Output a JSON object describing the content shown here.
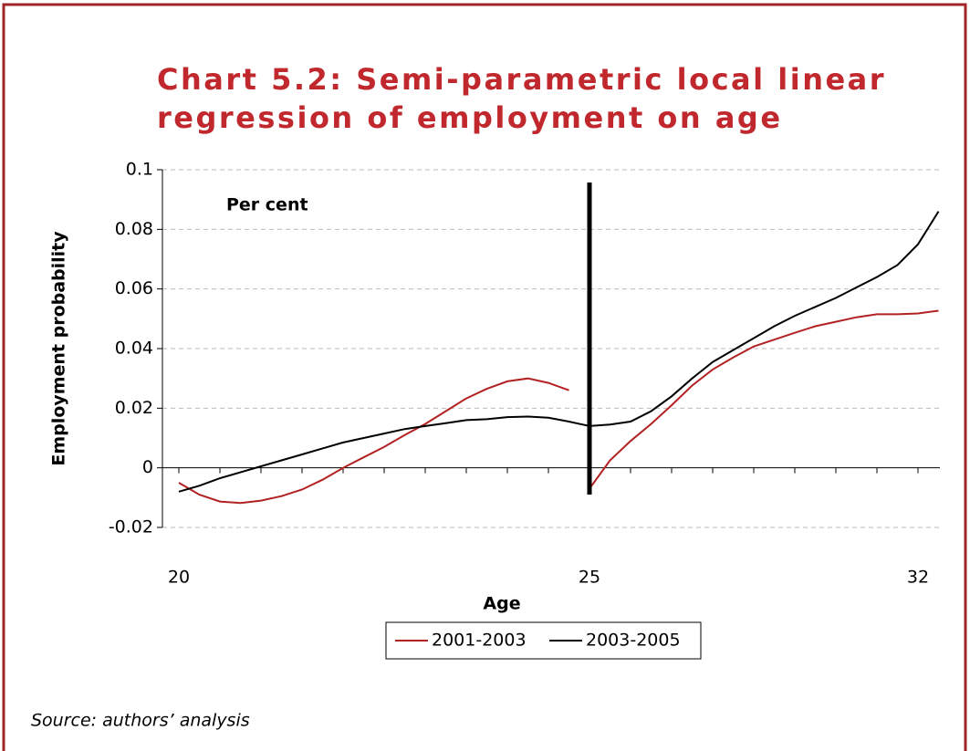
{
  "chart_data": {
    "type": "line",
    "title": "Chart 5.2: Semi-parametric local linear",
    "subtitle": "regression of employment on age",
    "annotation": "Per cent",
    "x_label": "Age",
    "y_label": "Employment probability",
    "source": "Source: authors’ analysis",
    "categories": [
      "20",
      null,
      null,
      null,
      null,
      null,
      null,
      null,
      null,
      null,
      null,
      null,
      null,
      null,
      null,
      null,
      null,
      null,
      null,
      null,
      "25",
      null,
      null,
      null,
      null,
      null,
      null,
      null,
      null,
      null,
      null,
      null,
      null,
      null,
      null,
      null,
      "32",
      null
    ],
    "series": [
      {
        "name": "2001-2003",
        "color": "#b22222",
        "values": [
          -0.005,
          -0.009,
          -0.0113,
          -0.0118,
          -0.011,
          -0.0095,
          -0.0073,
          -0.004,
          0,
          0.0035,
          0.007,
          0.011,
          0.0147,
          0.019,
          0.0233,
          0.0265,
          0.029,
          0.03,
          0.0285,
          0.026,
          -0.007,
          0.0025,
          0.009,
          0.0147,
          0.021,
          0.0276,
          0.033,
          0.037,
          0.0407,
          0.043,
          0.0453,
          0.0475,
          0.049,
          0.0505,
          0.0515,
          0.0515,
          0.0518,
          0.0527
        ]
      },
      {
        "name": "2003-2005",
        "color": "#000000",
        "values": [
          -0.008,
          -0.006,
          -0.0035,
          -0.0015,
          0.0005,
          0.0025,
          0.0045,
          0.0065,
          0.0085,
          0.01,
          0.0115,
          0.013,
          0.014,
          0.015,
          0.016,
          0.0163,
          0.017,
          0.0172,
          0.0168,
          0.0155,
          0.014,
          0.0145,
          0.0155,
          0.019,
          0.024,
          0.03,
          0.0355,
          0.0395,
          0.0435,
          0.0475,
          0.051,
          0.054,
          0.057,
          0.0605,
          0.064,
          0.068,
          0.075,
          0.086
        ]
      }
    ],
    "ylim": [
      -0.02,
      0.1
    ],
    "yticks": [
      -0.02,
      0,
      0.02,
      0.04,
      0.06,
      0.08,
      0.1
    ],
    "grid": true,
    "legend": "bottom"
  }
}
